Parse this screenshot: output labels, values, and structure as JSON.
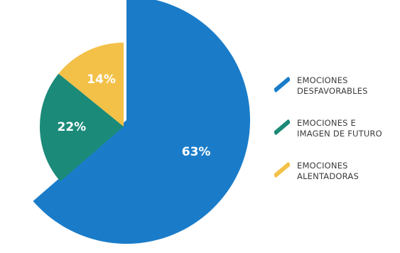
{
  "chart_data": {
    "type": "pie",
    "title": "",
    "slices": [
      {
        "label": "EMOCIONES DESFAVORABLES",
        "label_lines": [
          "EMOCIONES",
          "DESFAVORABLES"
        ],
        "value": 63,
        "value_label": "63%",
        "color": "#1a7cc9",
        "exploded": true
      },
      {
        "label": "EMOCIONES E IMAGEN DE FUTURO",
        "label_lines": [
          "EMOCIONES E",
          "IMAGEN DE FUTURO"
        ],
        "value": 22,
        "value_label": "22%",
        "color": "#1b8a79",
        "exploded": false
      },
      {
        "label": "EMOCIONES ALENTADORAS",
        "label_lines": [
          "EMOCIONES",
          "ALENTADORAS"
        ],
        "value": 14,
        "value_label": "14%",
        "color": "#f3c148",
        "exploded": false
      }
    ],
    "start_angle": "12 o'clock",
    "direction": "clockwise",
    "legend_position": "right"
  }
}
